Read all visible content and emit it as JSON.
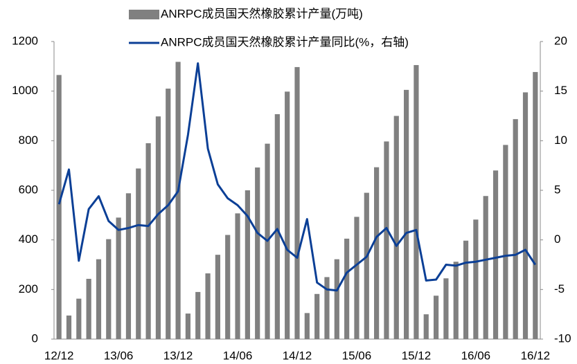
{
  "chart_data": {
    "type": "bar_line",
    "categories": [
      "12/12",
      null,
      null,
      null,
      null,
      null,
      "13/06",
      null,
      null,
      null,
      null,
      null,
      "13/12",
      null,
      null,
      null,
      null,
      null,
      "14/06",
      null,
      null,
      null,
      null,
      null,
      "14/12",
      null,
      null,
      null,
      null,
      null,
      "15/06",
      null,
      null,
      null,
      null,
      null,
      "15/12",
      null,
      null,
      null,
      null,
      null,
      "16/06",
      null,
      null,
      null,
      null,
      null,
      "16/12"
    ],
    "series": [
      {
        "name": "ANRPC成员国天然橡胶累计产量(万吨)",
        "type": "bar",
        "color": "#808080",
        "values": [
          1065,
          95,
          163,
          243,
          322,
          403,
          490,
          588,
          688,
          790,
          898,
          1010,
          1118,
          103,
          190,
          265,
          340,
          420,
          507,
          600,
          692,
          788,
          907,
          998,
          1097,
          105,
          182,
          250,
          322,
          405,
          493,
          590,
          693,
          797,
          900,
          1005,
          1105,
          100,
          175,
          245,
          312,
          397,
          482,
          577,
          680,
          783,
          887,
          995,
          1077
        ]
      },
      {
        "name": "ANRPC成员国天然橡胶累计产量同比(%，右轴)",
        "type": "line",
        "axis": "y2",
        "color": "#0b3f96",
        "values": [
          3.6,
          7.1,
          -2.1,
          3.1,
          4.4,
          1.9,
          1.0,
          1.2,
          1.5,
          1.4,
          2.6,
          3.5,
          4.9,
          10.6,
          17.8,
          9.2,
          5.6,
          4.2,
          3.5,
          2.4,
          0.7,
          -0.1,
          1.1,
          -1.0,
          -1.8,
          2.1,
          -4.3,
          -5.0,
          -5.1,
          -3.3,
          -2.5,
          -1.7,
          0.3,
          1.2,
          -0.6,
          0.7,
          1.0,
          -4.1,
          -4.0,
          -2.5,
          -2.6,
          -2.3,
          -2.2,
          -2.0,
          -1.8,
          -1.6,
          -1.5,
          -1.0,
          -2.5
        ]
      }
    ],
    "ylim": [
      0,
      1200
    ],
    "yticks": [
      0,
      200,
      400,
      600,
      800,
      1000,
      1200
    ],
    "y2lim": [
      -10,
      20
    ],
    "y2ticks": [
      -10,
      -5,
      0,
      5,
      10,
      15,
      20
    ],
    "grid": false,
    "legend": "top"
  }
}
